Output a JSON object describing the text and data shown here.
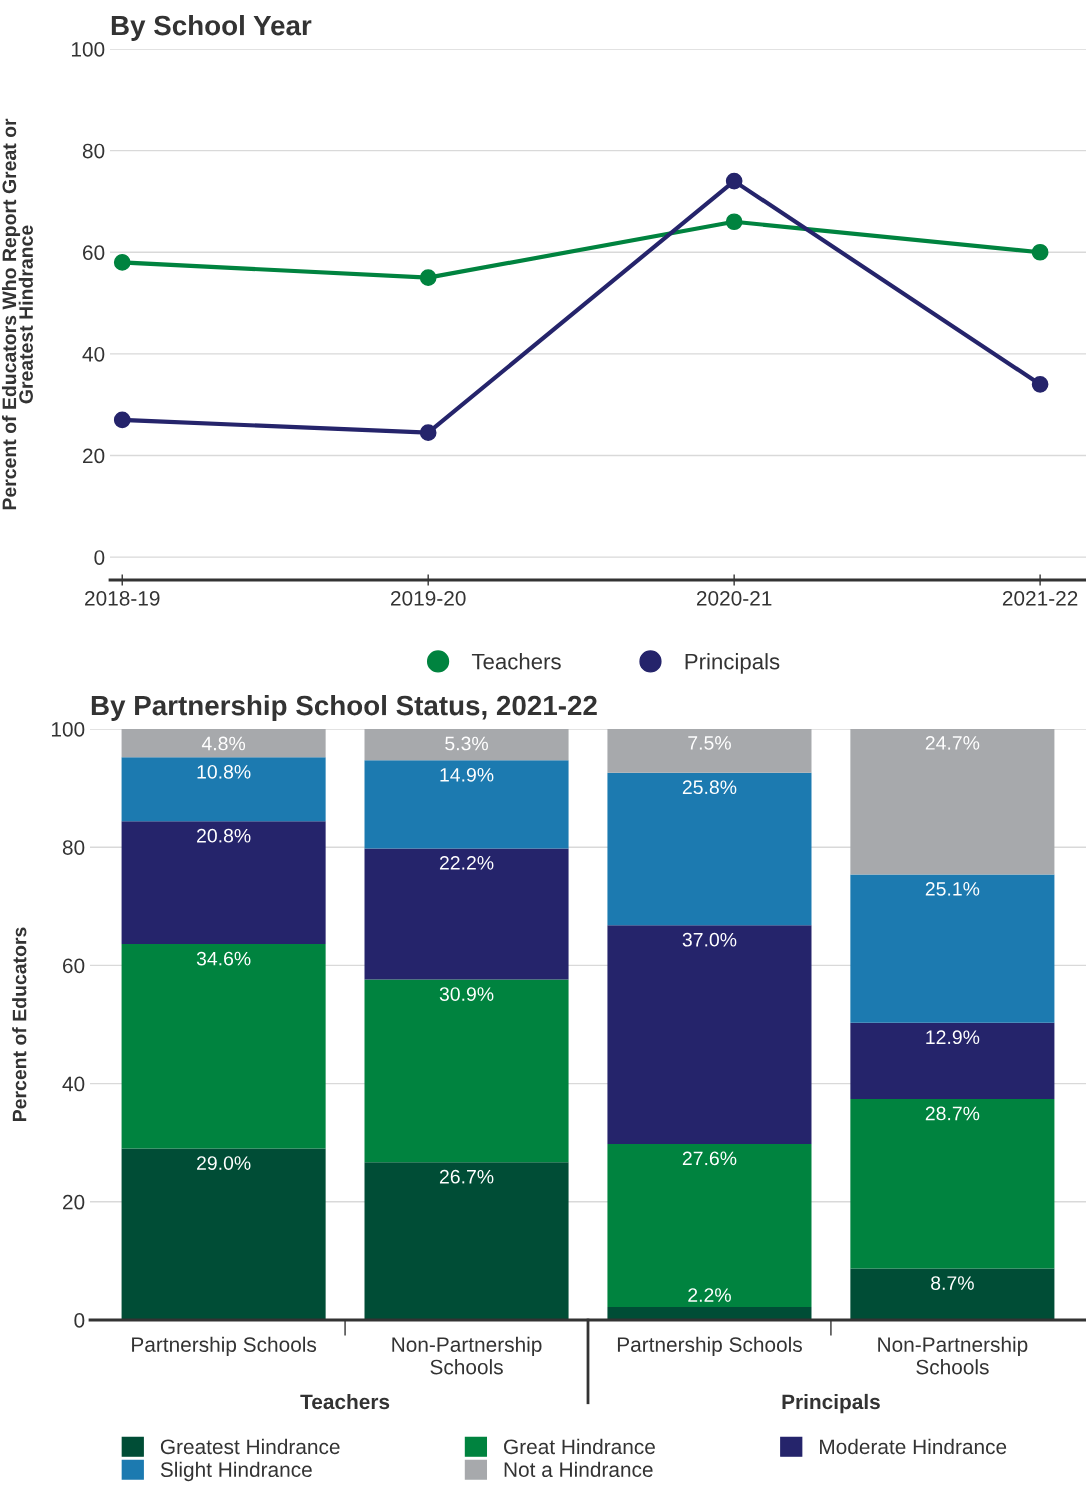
{
  "chart_data": [
    {
      "type": "line",
      "title": "By School Year",
      "ylabel": "Percent of Educators Who Report Great or\nGreatest Hindrance",
      "categories": [
        "2018-19",
        "2019-20",
        "2020-21",
        "2021-22"
      ],
      "ylim": [
        -4.5,
        100
      ],
      "yticks": [
        0,
        20,
        40,
        60,
        80,
        100
      ],
      "grid": "y",
      "legend": "bottom",
      "marker": "circle",
      "line_style": "solid",
      "series": [
        {
          "name": "Teachers",
          "color": "#00833f",
          "values": [
            58,
            55,
            66,
            60
          ]
        },
        {
          "name": "Principals",
          "color": "#25246b",
          "values": [
            27,
            24.5,
            74,
            34
          ]
        }
      ]
    },
    {
      "type": "bar",
      "stacked": true,
      "title": "By Partnership School Status, 2021-22",
      "ylabel": "Percent of Educators",
      "categories": [
        "Partnership Schools",
        "Non-Partnership\nSchools",
        "Partnership Schools",
        "Non-Partnership\nSchools"
      ],
      "ylim": [
        0,
        100
      ],
      "yticks": [
        0,
        20,
        40,
        60,
        80,
        100
      ],
      "grid": "y",
      "legend": "bottom",
      "annotations": [
        "Teachers",
        "Principals"
      ],
      "series": [
        {
          "name": "Greatest Hindrance",
          "color": "#004d36",
          "values": [
            29.0,
            26.7,
            2.2,
            8.7
          ],
          "value_labels": [
            "29.0%",
            "26.7%",
            "2.2%",
            "8.7%"
          ]
        },
        {
          "name": "Great Hindrance",
          "color": "#00833f",
          "values": [
            34.6,
            30.9,
            27.6,
            28.7
          ],
          "value_labels": [
            "34.6%",
            "30.9%",
            "27.6%",
            "28.7%"
          ]
        },
        {
          "name": "Moderate Hindrance",
          "color": "#25246b",
          "values": [
            20.8,
            22.2,
            37.0,
            12.9
          ],
          "value_labels": [
            "20.8%",
            "22.2%",
            "37.0%",
            "12.9%"
          ]
        },
        {
          "name": "Slight Hindrance",
          "color": "#1c7ab0",
          "values": [
            10.8,
            14.9,
            25.8,
            25.1
          ],
          "value_labels": [
            "10.8%",
            "14.9%",
            "25.8%",
            "25.1%"
          ]
        },
        {
          "name": "Not a Hindrance",
          "color": "#a7a9ac",
          "values": [
            4.8,
            5.3,
            7.5,
            24.7
          ],
          "value_labels": [
            "4.8%",
            "5.3%",
            "7.5%",
            "24.7%"
          ]
        }
      ]
    }
  ]
}
